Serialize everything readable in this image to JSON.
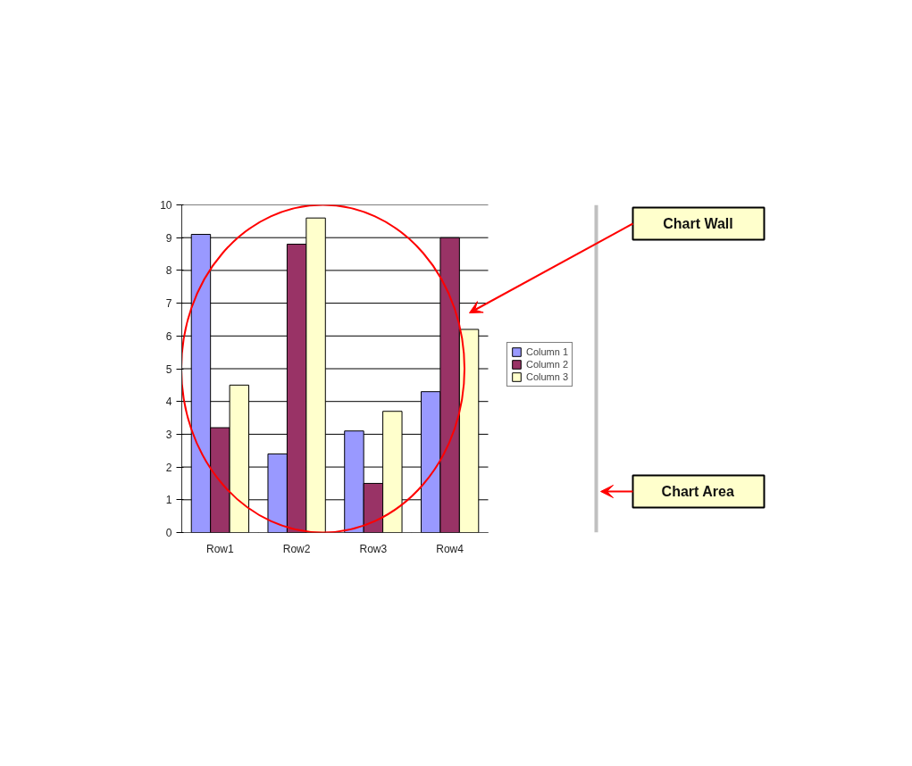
{
  "chart_data": {
    "type": "bar",
    "categories": [
      "Row1",
      "Row2",
      "Row3",
      "Row4"
    ],
    "series": [
      {
        "name": "Column 1",
        "color": "#9999ff",
        "values": [
          9.1,
          2.4,
          3.1,
          4.3
        ]
      },
      {
        "name": "Column 2",
        "color": "#993366",
        "values": [
          3.2,
          8.8,
          1.5,
          9.0
        ]
      },
      {
        "name": "Column 3",
        "color": "#ffffcc",
        "values": [
          4.5,
          9.6,
          3.7,
          6.2
        ]
      }
    ],
    "ylim": [
      0,
      10
    ],
    "yticks": [
      0,
      1,
      2,
      3,
      4,
      5,
      6,
      7,
      8,
      9,
      10
    ],
    "grid": "y",
    "legend": "right",
    "annotations": [
      "Chart Wall",
      "Chart Area"
    ]
  }
}
